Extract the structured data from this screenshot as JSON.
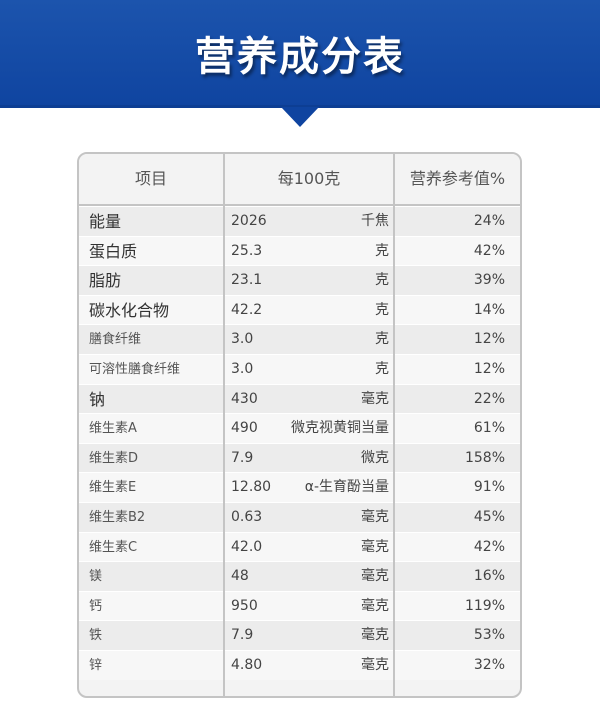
{
  "banner": {
    "title": "营养成分表",
    "color": "#0f44a0"
  },
  "table": {
    "headers": [
      "项目",
      "每100克",
      "营养参考值%"
    ],
    "rows": [
      {
        "name": "能量",
        "value": "2026",
        "unit": "千焦",
        "pct": "24%",
        "size": "big"
      },
      {
        "name": "蛋白质",
        "value": "25.3",
        "unit": "克",
        "pct": "42%",
        "size": "big"
      },
      {
        "name": "脂肪",
        "value": "23.1",
        "unit": "克",
        "pct": "39%",
        "size": "big"
      },
      {
        "name": "碳水化合物",
        "value": "42.2",
        "unit": "克",
        "pct": "14%",
        "size": "big"
      },
      {
        "name": "膳食纤维",
        "value": "3.0",
        "unit": "克",
        "pct": "12%",
        "size": "small"
      },
      {
        "name": "可溶性膳食纤维",
        "value": "3.0",
        "unit": "克",
        "pct": "12%",
        "size": "small"
      },
      {
        "name": "钠",
        "value": "430",
        "unit": "毫克",
        "pct": "22%",
        "size": "big"
      },
      {
        "name": "维生素A",
        "value": "490",
        "unit": "微克视黄铜当量",
        "pct": "61%",
        "size": "small"
      },
      {
        "name": "维生素D",
        "value": "7.9",
        "unit": "微克",
        "pct": "158%",
        "size": "small"
      },
      {
        "name": "维生素E",
        "value": "12.80",
        "unit": "α-生育酚当量",
        "pct": "91%",
        "size": "small"
      },
      {
        "name": "维生素B2",
        "value": "0.63",
        "unit": "毫克",
        "pct": "45%",
        "size": "small"
      },
      {
        "name": "维生素C",
        "value": "42.0",
        "unit": "毫克",
        "pct": "42%",
        "size": "small"
      },
      {
        "name": "镁",
        "value": "48",
        "unit": "毫克",
        "pct": "16%",
        "size": "small"
      },
      {
        "name": "钙",
        "value": "950",
        "unit": "毫克",
        "pct": "119%",
        "size": "small"
      },
      {
        "name": "铁",
        "value": "7.9",
        "unit": "毫克",
        "pct": "53%",
        "size": "small"
      },
      {
        "name": "锌",
        "value": "4.80",
        "unit": "毫克",
        "pct": "32%",
        "size": "small"
      }
    ]
  }
}
